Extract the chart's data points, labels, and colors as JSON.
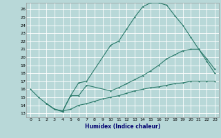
{
  "xlabel": "Humidex (Indice chaleur)",
  "background_color": "#b8d8d8",
  "grid_color": "#ffffff",
  "line_color": "#2a7a6a",
  "xlim": [
    -0.5,
    23.5
  ],
  "ylim": [
    12.5,
    26.8
  ],
  "yticks": [
    13,
    14,
    15,
    16,
    17,
    18,
    19,
    20,
    21,
    22,
    23,
    24,
    25,
    26
  ],
  "xticks": [
    0,
    1,
    2,
    3,
    4,
    5,
    6,
    7,
    8,
    9,
    10,
    11,
    12,
    13,
    14,
    15,
    16,
    17,
    18,
    19,
    20,
    21,
    22,
    23
  ],
  "curve1_x": [
    0,
    1,
    2,
    3,
    4,
    5,
    6,
    7,
    10,
    11,
    12,
    13,
    14,
    15,
    16,
    17,
    18,
    19,
    20,
    21,
    22,
    23
  ],
  "curve1_y": [
    16,
    15,
    14.2,
    13.5,
    13.2,
    15.2,
    16.8,
    17.0,
    21.5,
    22.0,
    23.5,
    25.0,
    26.3,
    26.8,
    26.8,
    26.5,
    25.2,
    24.0,
    22.5,
    21.0,
    19.5,
    18.0
  ],
  "curve2_x": [
    2,
    3,
    4,
    5,
    6,
    7,
    10,
    11,
    12,
    13,
    14,
    15,
    16,
    17,
    18,
    19,
    20,
    21,
    22,
    23
  ],
  "curve2_y": [
    14.2,
    13.5,
    13.3,
    15.2,
    15.2,
    16.5,
    15.8,
    16.2,
    16.7,
    17.2,
    17.7,
    18.3,
    19.0,
    19.8,
    20.3,
    20.8,
    21.0,
    21.0,
    19.8,
    18.5
  ],
  "curve3_x": [
    2,
    3,
    4,
    5,
    6,
    7,
    8,
    9,
    10,
    11,
    12,
    13,
    14,
    15,
    16,
    17,
    18,
    19,
    20,
    21,
    22,
    23
  ],
  "curve3_y": [
    14.2,
    13.5,
    13.3,
    13.5,
    14.0,
    14.2,
    14.5,
    14.8,
    15.0,
    15.2,
    15.5,
    15.8,
    16.0,
    16.2,
    16.3,
    16.5,
    16.7,
    16.8,
    17.0,
    17.0,
    17.0,
    17.0
  ]
}
